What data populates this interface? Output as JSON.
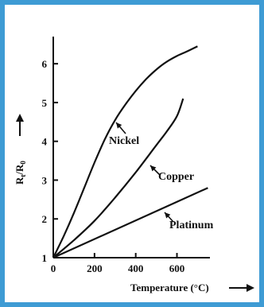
{
  "chart_data": {
    "type": "line",
    "ylabel_main": "R",
    "ylabel_sub_t": "t",
    "ylabel_slash": "/R",
    "ylabel_sub_0": "0",
    "xlabel": "Temperature (°C)",
    "xlim": [
      0,
      760
    ],
    "ylim": [
      1,
      6.7
    ],
    "x_ticks": [
      0,
      200,
      400,
      600
    ],
    "x_tick_labels": [
      "0",
      "200",
      "400",
      "600"
    ],
    "y_ticks": [
      1,
      2,
      3,
      4,
      5,
      6
    ],
    "y_tick_labels": [
      "1",
      "2",
      "3",
      "4",
      "5",
      "6"
    ],
    "series": [
      {
        "name": "Nickel",
        "x": [
          0,
          50,
          100,
          150,
          200,
          250,
          300,
          350,
          400,
          450,
          500,
          550,
          600,
          650,
          700
        ],
        "y": [
          1.0,
          1.55,
          2.15,
          2.8,
          3.45,
          4.05,
          4.55,
          4.95,
          5.3,
          5.6,
          5.85,
          6.05,
          6.2,
          6.32,
          6.45
        ]
      },
      {
        "name": "Copper",
        "x": [
          0,
          100,
          200,
          300,
          400,
          500,
          550,
          600,
          630
        ],
        "y": [
          1.0,
          1.45,
          1.95,
          2.55,
          3.2,
          3.9,
          4.25,
          4.65,
          5.1
        ]
      },
      {
        "name": "Platinum",
        "x": [
          0,
          750
        ],
        "y": [
          1.0,
          2.8
        ]
      }
    ]
  }
}
